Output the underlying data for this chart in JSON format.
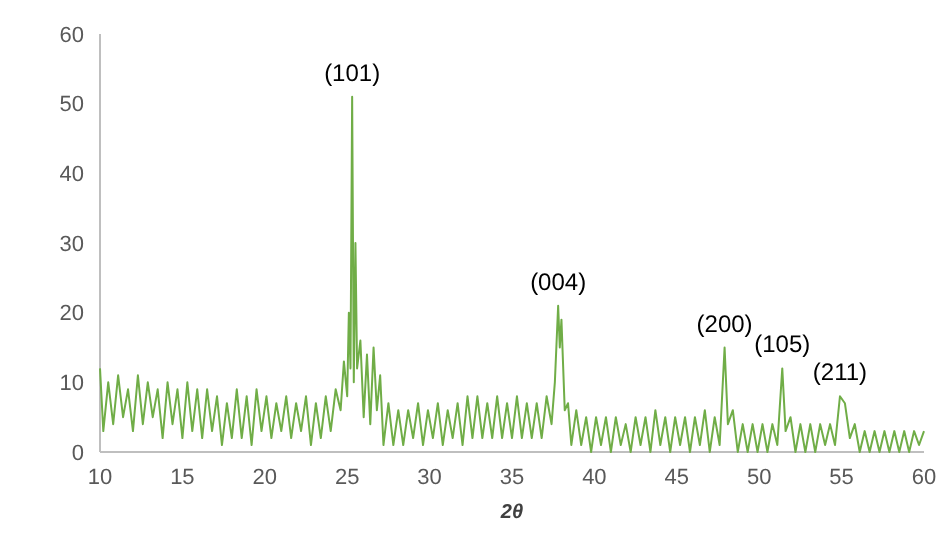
{
  "chart_data": {
    "type": "line",
    "xlabel": "2θ",
    "xlim": [
      10,
      60
    ],
    "xticks": [
      10,
      15,
      20,
      25,
      30,
      35,
      40,
      45,
      50,
      55,
      60
    ],
    "ylim": [
      0,
      60
    ],
    "yticks": [
      0,
      10,
      20,
      30,
      40,
      50,
      60
    ],
    "grid": false,
    "marker": "none",
    "line_style": "solid",
    "x": [
      10,
      10.2,
      10.5,
      10.8,
      11.1,
      11.4,
      11.7,
      12.0,
      12.3,
      12.6,
      12.9,
      13.2,
      13.5,
      13.8,
      14.1,
      14.4,
      14.7,
      15.0,
      15.3,
      15.6,
      15.9,
      16.2,
      16.5,
      16.8,
      17.1,
      17.4,
      17.7,
      18.0,
      18.3,
      18.6,
      18.9,
      19.2,
      19.5,
      19.8,
      20.1,
      20.4,
      20.7,
      21.0,
      21.3,
      21.6,
      21.9,
      22.2,
      22.5,
      22.8,
      23.1,
      23.4,
      23.7,
      24.0,
      24.3,
      24.6,
      24.8,
      25.0,
      25.1,
      25.2,
      25.3,
      25.4,
      25.5,
      25.6,
      25.8,
      26.0,
      26.2,
      26.4,
      26.6,
      26.8,
      27.0,
      27.2,
      27.5,
      27.8,
      28.1,
      28.4,
      28.7,
      29.0,
      29.3,
      29.6,
      29.9,
      30.2,
      30.5,
      30.8,
      31.1,
      31.4,
      31.7,
      32.0,
      32.3,
      32.6,
      32.9,
      33.2,
      33.5,
      33.8,
      34.1,
      34.4,
      34.7,
      35.0,
      35.3,
      35.6,
      35.9,
      36.2,
      36.5,
      36.8,
      37.1,
      37.4,
      37.6,
      37.8,
      37.9,
      38.0,
      38.2,
      38.4,
      38.6,
      38.9,
      39.2,
      39.5,
      39.8,
      40.1,
      40.4,
      40.7,
      41.0,
      41.3,
      41.6,
      41.9,
      42.2,
      42.5,
      42.8,
      43.1,
      43.4,
      43.7,
      44.0,
      44.3,
      44.6,
      44.9,
      45.2,
      45.5,
      45.8,
      46.1,
      46.4,
      46.7,
      47.0,
      47.3,
      47.6,
      47.9,
      48.1,
      48.4,
      48.7,
      49.0,
      49.3,
      49.6,
      49.9,
      50.2,
      50.5,
      50.8,
      51.1,
      51.4,
      51.6,
      51.9,
      52.2,
      52.5,
      52.8,
      53.1,
      53.4,
      53.7,
      54.0,
      54.3,
      54.6,
      54.9,
      55.2,
      55.5,
      55.8,
      56.1,
      56.4,
      56.7,
      57.0,
      57.3,
      57.6,
      57.9,
      58.2,
      58.5,
      58.8,
      59.1,
      59.4,
      59.7,
      60
    ],
    "series": [
      {
        "color": "#70ad47",
        "values": [
          12,
          3,
          10,
          4,
          11,
          5,
          9,
          3,
          11,
          4,
          10,
          5,
          9,
          2,
          10,
          4,
          9,
          2,
          10,
          3,
          9,
          2,
          9,
          3,
          8,
          1,
          7,
          2,
          9,
          2,
          8,
          1,
          9,
          3,
          8,
          2,
          7,
          3,
          8,
          2,
          7,
          3,
          8,
          1,
          7,
          2,
          8,
          3,
          9,
          6,
          13,
          8,
          20,
          12,
          51,
          10,
          30,
          12,
          16,
          5,
          14,
          4,
          15,
          6,
          11,
          1,
          7,
          1,
          6,
          1,
          6,
          2,
          7,
          1,
          6,
          2,
          7,
          1,
          6,
          2,
          7,
          1,
          8,
          2,
          8,
          2,
          7,
          2,
          8,
          2,
          7,
          2,
          8,
          2,
          7,
          2,
          7,
          2,
          8,
          4,
          10,
          21,
          15,
          19,
          6,
          7,
          1,
          6,
          1,
          5,
          0,
          5,
          1,
          5,
          0,
          5,
          1,
          4,
          0,
          5,
          1,
          5,
          0,
          6,
          1,
          5,
          0,
          5,
          1,
          5,
          0,
          5,
          1,
          6,
          0,
          5,
          1,
          15,
          4,
          6,
          0,
          4,
          0,
          4,
          0,
          4,
          0,
          4,
          1,
          12,
          3,
          5,
          0,
          4,
          0,
          4,
          0,
          4,
          1,
          4,
          1,
          8,
          7,
          2,
          4,
          0,
          3,
          0,
          3,
          0,
          3,
          0,
          3,
          0,
          3,
          0,
          3,
          1,
          3
        ]
      }
    ],
    "annotations": [
      {
        "text": "(101)",
        "x": 25.3,
        "y": 51
      },
      {
        "text": "(004)",
        "x": 37.8,
        "y": 21
      },
      {
        "text": "(200)",
        "x": 47.9,
        "y": 15
      },
      {
        "text": "(105)",
        "x": 51.4,
        "y": 12
      },
      {
        "text": "(211)",
        "x": 54.9,
        "y": 8
      }
    ]
  }
}
